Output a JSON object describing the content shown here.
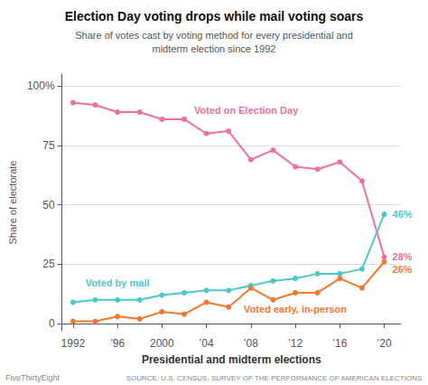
{
  "chart_data": {
    "type": "line",
    "title": "Election Day voting drops while mail voting soars",
    "subtitle": "Share of votes cast by voting method for every presidential and\nmidterm election since 1992",
    "xlabel": "Presidential and midterm elections",
    "ylabel": "Share of electorate",
    "x": [
      1992,
      1994,
      1996,
      1998,
      2000,
      2002,
      2004,
      2006,
      2008,
      2010,
      2012,
      2014,
      2016,
      2018,
      2020
    ],
    "series": [
      {
        "name": "Voted on Election Day",
        "color": "#f0709a",
        "values": [
          93,
          92,
          89,
          89,
          86,
          86,
          80,
          81,
          69,
          73,
          66,
          65,
          68,
          60,
          28
        ],
        "value_labels": [
          null,
          null,
          null,
          null,
          null,
          null,
          null,
          null,
          null,
          null,
          null,
          null,
          null,
          null,
          "28%"
        ]
      },
      {
        "name": "Voted by mail",
        "color": "#4bc8c8",
        "values": [
          9,
          10,
          10,
          10,
          12,
          13,
          14,
          14,
          16,
          18,
          19,
          21,
          21,
          23,
          46
        ],
        "value_labels": [
          null,
          null,
          null,
          null,
          null,
          null,
          null,
          null,
          null,
          null,
          null,
          null,
          null,
          null,
          "46%"
        ]
      },
      {
        "name": "Voted early, in-person",
        "color": "#f07830",
        "values": [
          1,
          1,
          3,
          2,
          5,
          4,
          9,
          7,
          15,
          10,
          13,
          13,
          19,
          15,
          26
        ],
        "value_labels": [
          null,
          null,
          null,
          null,
          null,
          null,
          null,
          null,
          null,
          null,
          null,
          null,
          null,
          null,
          "26%"
        ]
      }
    ],
    "marker": "circle",
    "xlim": [
      1991,
      2021.5
    ],
    "xticks": [
      1992,
      {
        "value": 1996,
        "label": "’96"
      },
      2000,
      {
        "value": 2004,
        "label": "’04"
      },
      {
        "value": 2008,
        "label": "’08"
      },
      {
        "value": 2012,
        "label": "’12"
      },
      {
        "value": 2016,
        "label": "’16"
      },
      {
        "value": 2020,
        "label": "’20"
      }
    ],
    "ylim": [
      -3,
      105
    ],
    "yticks": [
      0,
      25,
      50,
      75,
      {
        "value": 100,
        "label": "100%"
      }
    ],
    "grid": true,
    "annotations": [
      "FiveThirtyEight",
      "SOURCE: U.S. CENSUS, SURVEY OF THE PERFORMANCE OF AMERICAN ELECTIONS"
    ]
  }
}
